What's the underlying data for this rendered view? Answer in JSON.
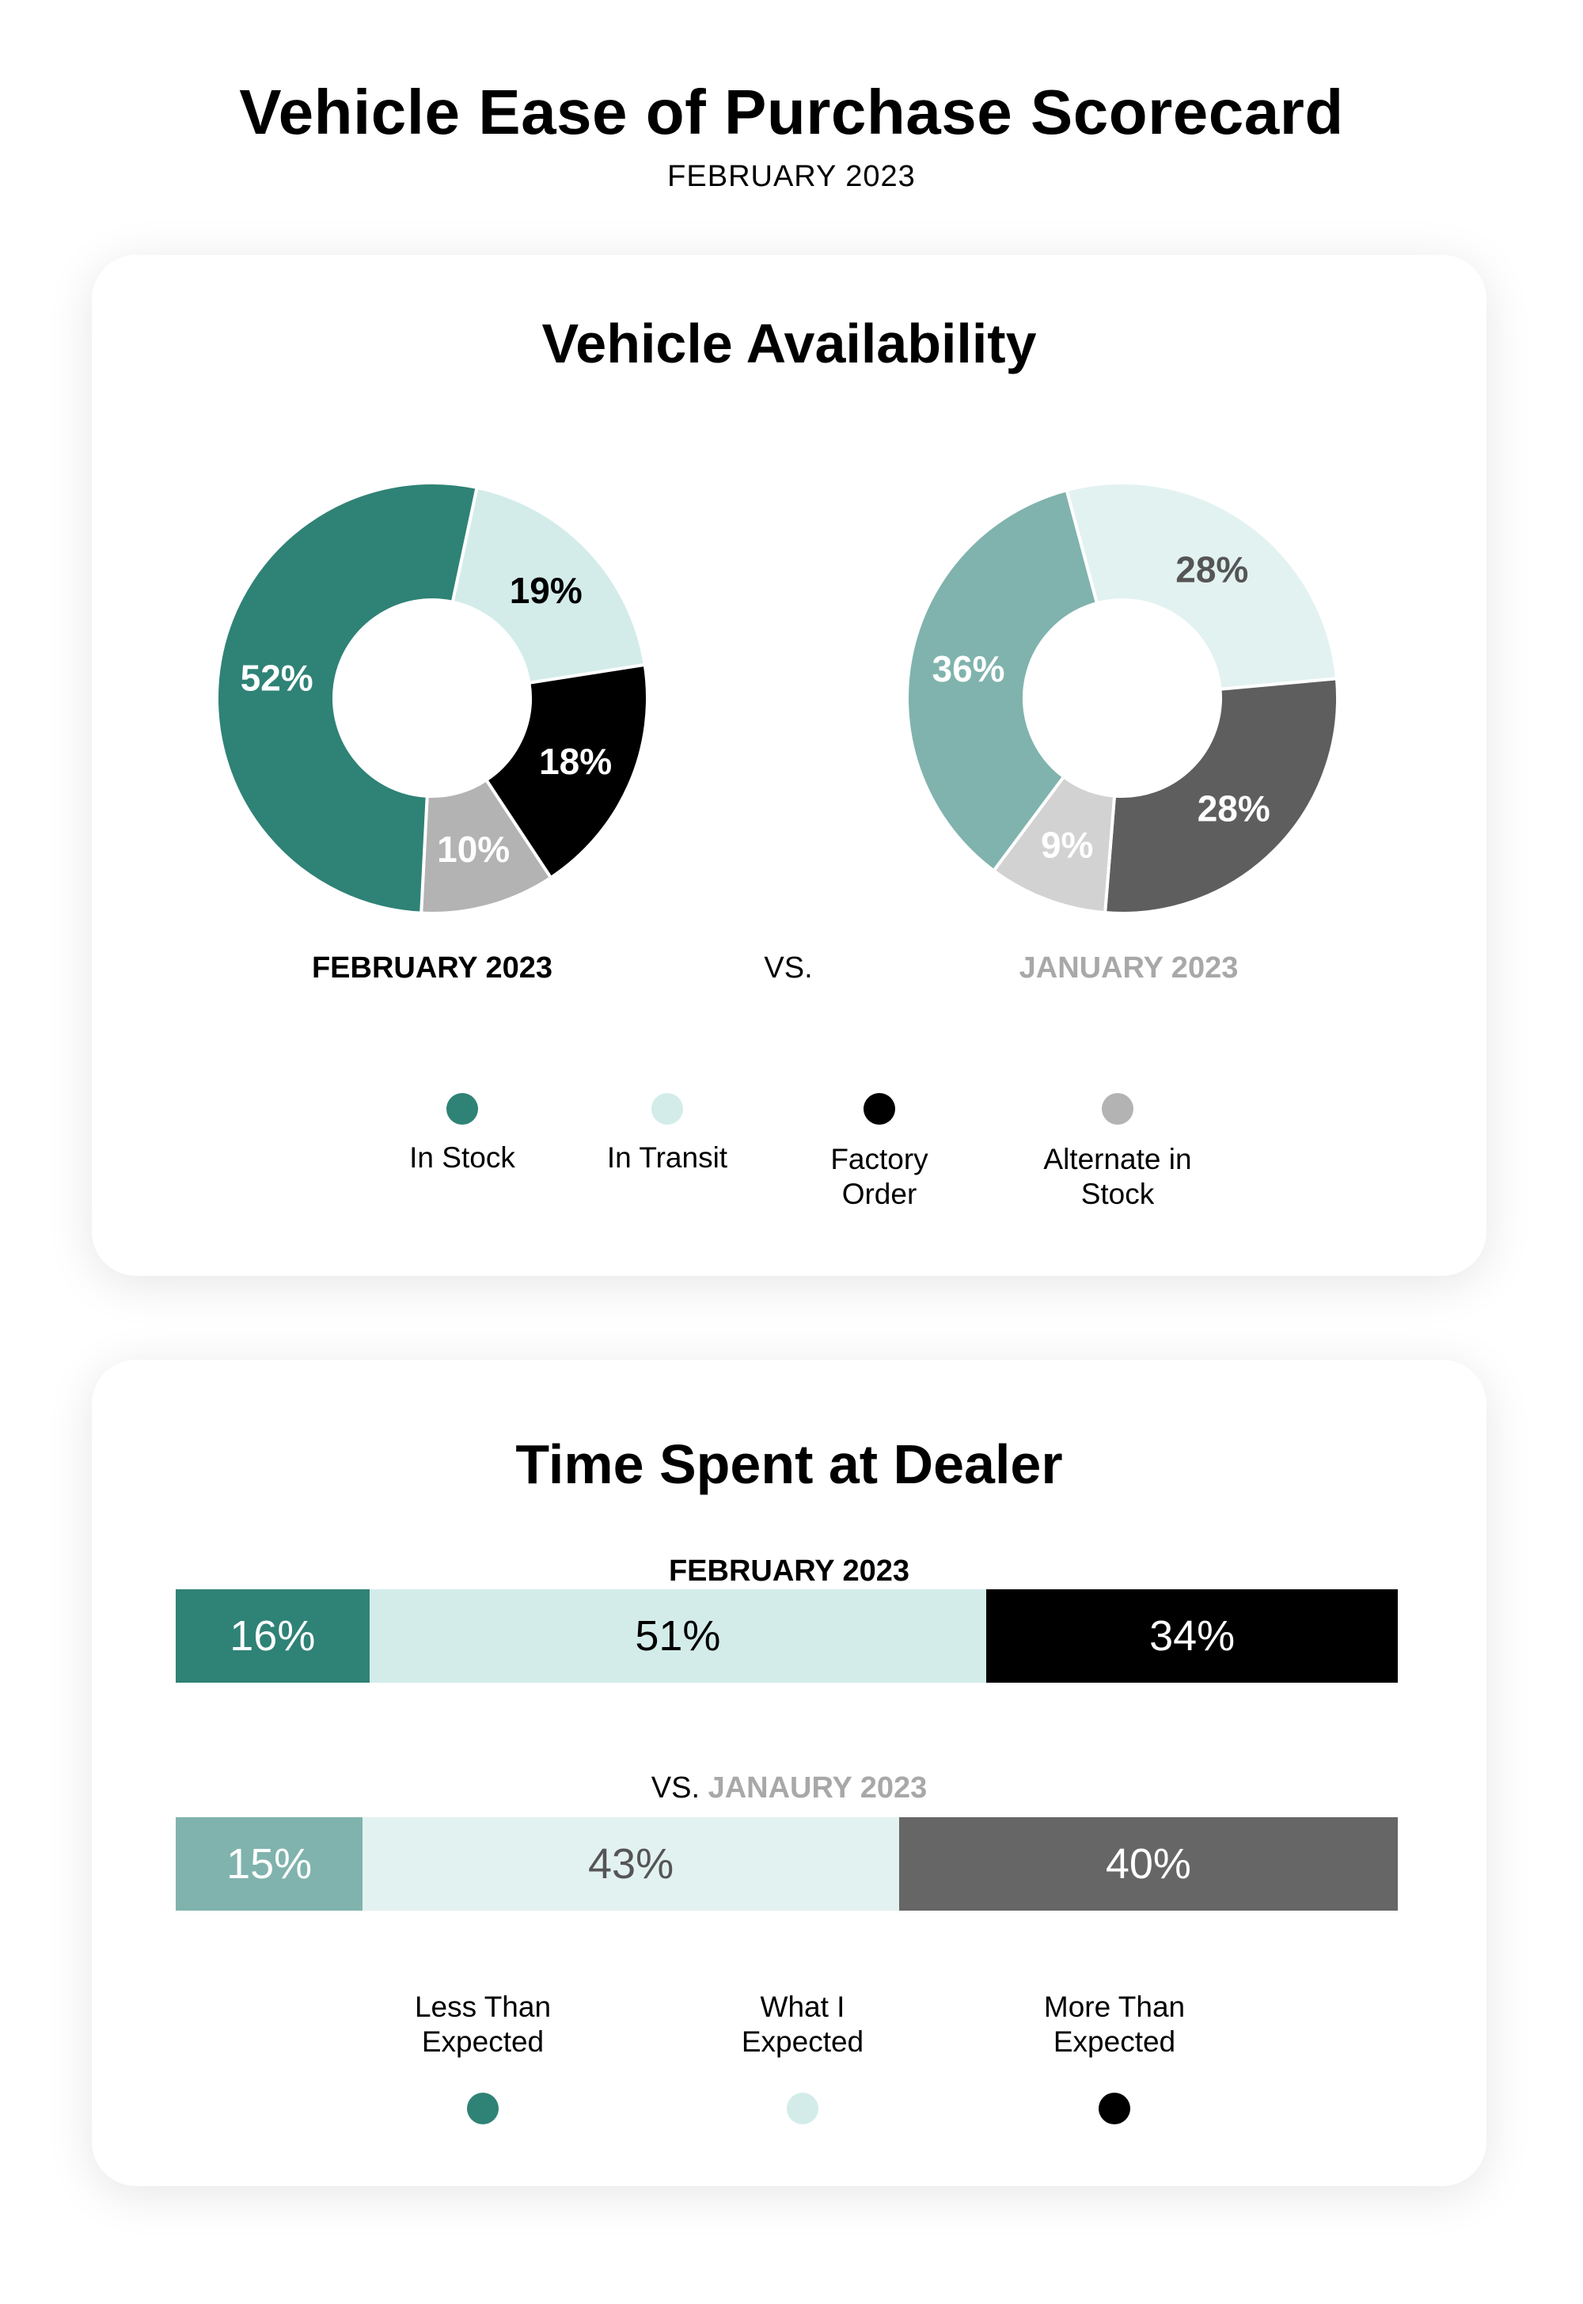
{
  "header": {
    "title": "Vehicle Ease of Purchase Scorecard",
    "subtitle": "FEBRUARY 2023"
  },
  "availability": {
    "title": "Vehicle Availability",
    "feb_label": "FEBRUARY 2023",
    "vs_label": "VS.",
    "jan_label": "JANUARY 2023",
    "legend": [
      {
        "label_line1": "In Stock",
        "label_line2": "",
        "color": "#2f8276"
      },
      {
        "label_line1": "In Transit",
        "label_line2": "",
        "color": "#d3ecea"
      },
      {
        "label_line1": "Factory",
        "label_line2": "Order",
        "color": "#000000"
      },
      {
        "label_line1": "Alternate in",
        "label_line2": "Stock",
        "color": "#b3b3b3"
      }
    ]
  },
  "time_spent": {
    "title": "Time Spent at Dealer",
    "feb_label": "FEBRUARY 2023",
    "vs_prefix": "VS. ",
    "jan_label": "JANAURY 2023",
    "legend": [
      {
        "label_line1": "Less Than",
        "label_line2": "Expected",
        "color": "#2f8276"
      },
      {
        "label_line1": "What I",
        "label_line2": "Expected",
        "color": "#d3ecea"
      },
      {
        "label_line1": "More Than",
        "label_line2": "Expected",
        "color": "#000000"
      }
    ]
  },
  "chart_data": [
    {
      "type": "pie",
      "title": "FEBRUARY 2023",
      "categories": [
        "In Stock",
        "In Transit",
        "Factory Order",
        "Alternate in Stock"
      ],
      "values": [
        52,
        19,
        18,
        10
      ],
      "labels": [
        "52%",
        "19%",
        "18%",
        "10%"
      ],
      "colors": [
        "#2f8276",
        "#d3ecea",
        "#000000",
        "#b3b3b3"
      ],
      "label_colors": [
        "#ffffff",
        "#000000",
        "#ffffff",
        "#ffffff"
      ],
      "style": "donut"
    },
    {
      "type": "pie",
      "title": "JANUARY 2023",
      "categories": [
        "In Stock",
        "In Transit",
        "Factory Order",
        "Alternate in Stock"
      ],
      "values": [
        36,
        28,
        28,
        9
      ],
      "labels": [
        "36%",
        "28%",
        "28%",
        "9%"
      ],
      "colors": [
        "#80b3ad",
        "#e2f2f0",
        "#5e5e5e",
        "#d2d2d2"
      ],
      "label_colors": [
        "#ffffff",
        "#555555",
        "#ffffff",
        "#ffffff"
      ],
      "style": "donut"
    },
    {
      "type": "bar",
      "orientation": "horizontal-stacked",
      "title": "FEBRUARY 2023",
      "categories": [
        "Less Than Expected",
        "What I Expected",
        "More Than Expected"
      ],
      "values": [
        16,
        51,
        34
      ],
      "labels": [
        "16%",
        "51%",
        "34%"
      ],
      "colors": [
        "#2f8276",
        "#d3ecea",
        "#000000"
      ],
      "label_colors": [
        "#ffffff",
        "#000000",
        "#ffffff"
      ]
    },
    {
      "type": "bar",
      "orientation": "horizontal-stacked",
      "title": "JANAURY 2023",
      "categories": [
        "Less Than Expected",
        "What I Expected",
        "More Than Expected"
      ],
      "values": [
        15,
        43,
        40
      ],
      "labels": [
        "15%",
        "43%",
        "40%"
      ],
      "colors": [
        "#80b3ad",
        "#e2f2f0",
        "#666666"
      ],
      "label_colors": [
        "#ffffff",
        "#555555",
        "#ffffff"
      ]
    }
  ]
}
